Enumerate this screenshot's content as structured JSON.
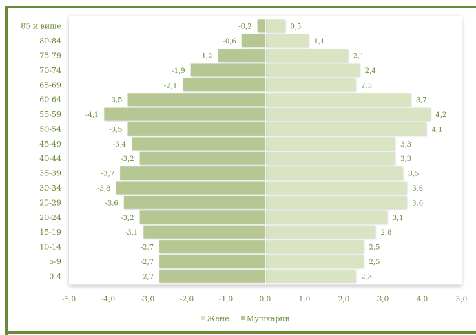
{
  "chart_data": {
    "type": "bar",
    "orientation": "horizontal",
    "categories": [
      "85 и више",
      "80-84",
      "75-79",
      "70-74",
      "65-69",
      "60-64",
      "55-59",
      "50-54",
      "45-49",
      "40-44",
      "35-39",
      "30-34",
      "25-29",
      "20-24",
      "15-19",
      "10-14",
      "5-9",
      "0-4"
    ],
    "series": [
      {
        "name": "Жене",
        "color": "#d9e4c3",
        "values": [
          0.5,
          1.1,
          2.1,
          2.4,
          2.3,
          3.7,
          4.2,
          4.1,
          3.3,
          3.3,
          3.5,
          3.6,
          3.6,
          3.1,
          2.8,
          2.5,
          2.5,
          2.3
        ],
        "labels": [
          "0,5",
          "1,1",
          "2,1",
          "2,4",
          "2,3",
          "3,7",
          "4,2",
          "4,1",
          "3,3",
          "3,3",
          "3,5",
          "3,6",
          "3,6",
          "3,1",
          "2,8",
          "2,5",
          "2,5",
          "2,3"
        ]
      },
      {
        "name": "Мушкарци",
        "color": "#b7c793",
        "values": [
          -0.2,
          -0.6,
          -1.2,
          -1.9,
          -2.1,
          -3.5,
          -4.1,
          -3.5,
          -3.4,
          -3.2,
          -3.7,
          -3.8,
          -3.6,
          -3.2,
          -3.1,
          -2.7,
          -2.7,
          -2.7
        ],
        "labels": [
          "-0,2",
          "-0,6",
          "-1,2",
          "-1,9",
          "-2,1",
          "-3,5",
          "-4,1",
          "-3,5",
          "-3,4",
          "-3,2",
          "-3,7",
          "-3,8",
          "-3,6",
          "-3,2",
          "-3,1",
          "-2,7",
          "-2,7",
          "-2,7"
        ]
      }
    ],
    "xlim": [
      -5,
      5
    ],
    "xticks": [
      -5,
      -4,
      -3,
      -2,
      -1,
      0,
      1,
      2,
      3,
      4,
      5
    ],
    "xtick_labels": [
      "-5,0",
      "-4,0",
      "-3,0",
      "-2,0",
      "-1,0",
      "0,0",
      "1,0",
      "2,0",
      "3,0",
      "4,0",
      "5,0"
    ],
    "legend": [
      "Жене",
      "Мушкарци"
    ],
    "legend_position": "bottom",
    "grid": false,
    "colors": {
      "text": "#6a8a3a",
      "frame": "#6a8a3a",
      "female": "#d9e4c3",
      "male": "#b7c793"
    }
  }
}
